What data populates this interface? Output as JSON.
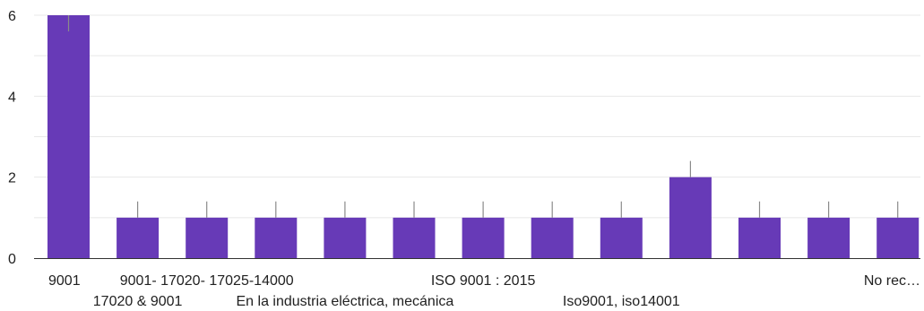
{
  "chart_data": {
    "type": "bar",
    "categories": [
      "9001",
      "17020 & 9001",
      "9001- 17020- 17025-14000",
      "",
      "En la industria eléctrica, mecánica",
      "",
      "ISO 9001 : 2015",
      "",
      "Iso9001, iso14001",
      "",
      "",
      "",
      "No rec…"
    ],
    "values": [
      6,
      1,
      1,
      1,
      1,
      1,
      1,
      1,
      1,
      2,
      1,
      1,
      1
    ],
    "error_upper": [
      6,
      1.4,
      1.4,
      1.4,
      1.4,
      1.4,
      1.4,
      1.4,
      1.4,
      2.4,
      1.4,
      1.4,
      1.4
    ],
    "error_lower": [
      5.6,
      1,
      1,
      1,
      1,
      1,
      1,
      1,
      1,
      2,
      1,
      1,
      1
    ],
    "ylim": [
      0,
      6
    ],
    "yticks": [
      0,
      2,
      4,
      6
    ],
    "grid": true,
    "bar_color": "#673ab7",
    "error_color": "#8a8a8a",
    "grid_color": "#e8e8e8",
    "title": "",
    "xlabel": "",
    "ylabel": ""
  }
}
